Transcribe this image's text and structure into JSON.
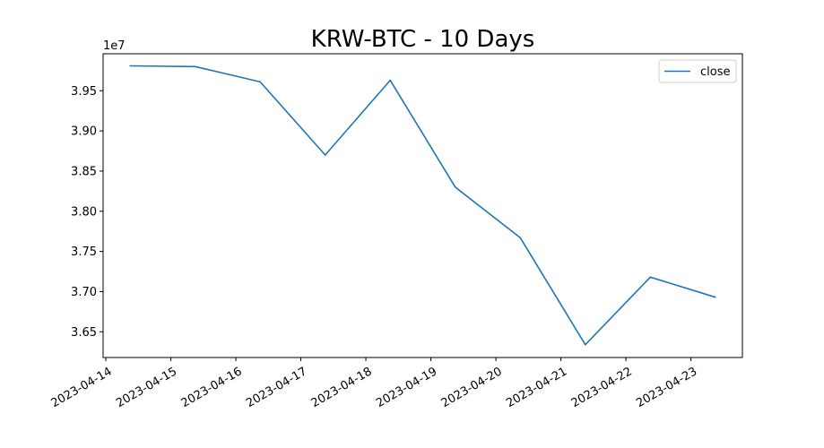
{
  "chart_data": {
    "type": "line",
    "title": "KRW-BTC - 10 Days",
    "xlabel": "",
    "ylabel": "",
    "y_offset_label": "1e7",
    "y_scale": 10000000,
    "x": [
      "2023-04-14 09:00",
      "2023-04-15 09:00",
      "2023-04-16 09:00",
      "2023-04-17 09:00",
      "2023-04-18 09:00",
      "2023-04-19 09:00",
      "2023-04-20 09:00",
      "2023-04-21 09:00",
      "2023-04-22 09:00",
      "2023-04-23 09:00"
    ],
    "series": [
      {
        "name": "close",
        "color": "#1f77b4",
        "values": [
          39810000,
          39800000,
          39610000,
          38700000,
          39630000,
          38300000,
          37670000,
          36340000,
          37180000,
          36930000
        ]
      }
    ],
    "xlim": [
      "2023-04-13 23:00",
      "2023-04-23 19:00"
    ],
    "ylim": [
      36180000,
      39960000
    ],
    "x_ticks": [
      "2023-04-14",
      "2023-04-15",
      "2023-04-16",
      "2023-04-17",
      "2023-04-18",
      "2023-04-19",
      "2023-04-20",
      "2023-04-21",
      "2023-04-22",
      "2023-04-23"
    ],
    "y_ticks": [
      36500000,
      37000000,
      37500000,
      38000000,
      38500000,
      39000000,
      39500000
    ],
    "y_tick_labels": [
      "3.65",
      "3.70",
      "3.75",
      "3.80",
      "3.85",
      "3.90",
      "3.95"
    ],
    "grid": false,
    "legend_position": "upper-right"
  }
}
